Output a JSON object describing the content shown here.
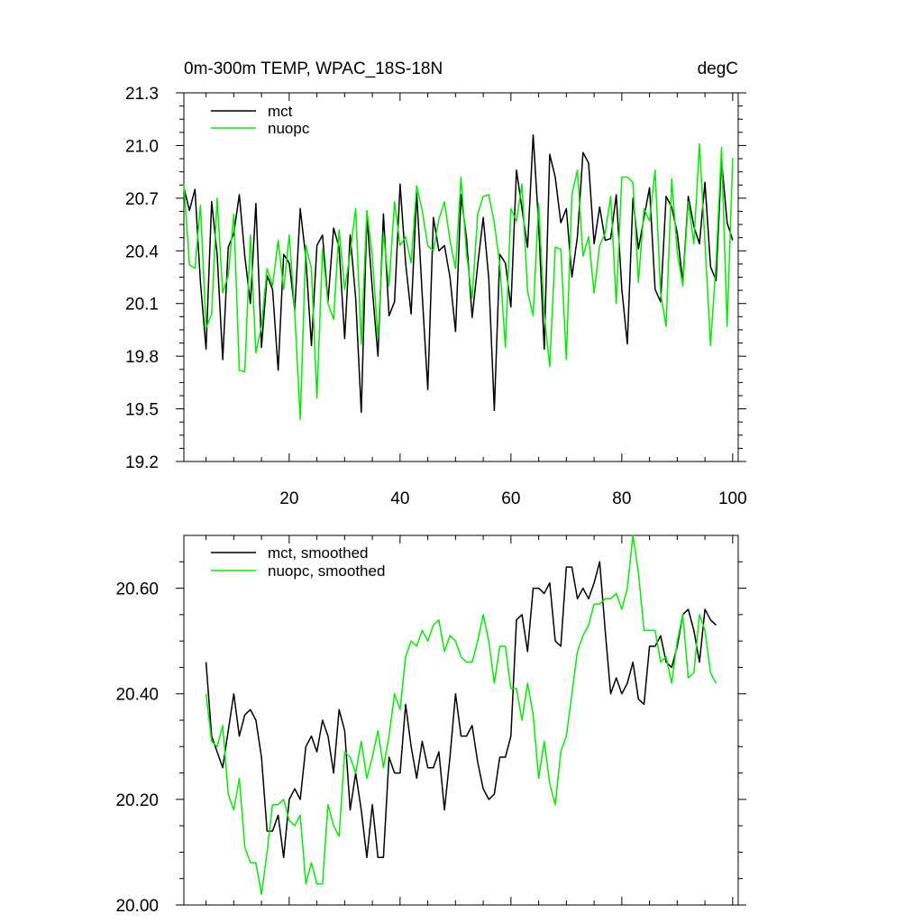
{
  "chart_data": [
    {
      "type": "line",
      "title": "0m-300m TEMP, WPAC_18S-18N",
      "units": "degC",
      "xlim": [
        1,
        101
      ],
      "ylim": [
        19.2,
        21.3
      ],
      "x_ticks": [
        20,
        40,
        60,
        80,
        100
      ],
      "x_tick_labels": [
        "20",
        "40",
        "60",
        "80",
        "100"
      ],
      "y_ticks": [
        19.2,
        19.5,
        19.8,
        20.1,
        20.4,
        20.7,
        21.0,
        21.3
      ],
      "y_tick_labels": [
        "19.2",
        "19.5",
        "19.8",
        "20.1",
        "20.4",
        "20.7",
        "21.0",
        "21.3"
      ],
      "legend_position": "top-left",
      "series": [
        {
          "name": "mct",
          "color": "#000000",
          "x_start": 1,
          "values": [
            20.76,
            20.63,
            20.75,
            20.22,
            19.84,
            20.68,
            20.38,
            19.78,
            20.42,
            20.5,
            20.72,
            20.37,
            20.1,
            20.67,
            19.85,
            20.26,
            20.18,
            19.72,
            20.38,
            20.33,
            20.06,
            20.64,
            20.36,
            19.86,
            20.43,
            20.49,
            20.11,
            20.53,
            20.42,
            19.9,
            20.49,
            20.13,
            19.48,
            20.6,
            20.18,
            19.8,
            20.61,
            20.03,
            20.11,
            20.78,
            20.33,
            20.04,
            20.73,
            20.15,
            19.61,
            20.59,
            20.4,
            20.43,
            20.25,
            19.94,
            20.72,
            20.47,
            20.02,
            20.32,
            20.59,
            20.24,
            19.49,
            20.38,
            20.33,
            20.08,
            20.86,
            20.64,
            20.42,
            21.06,
            20.55,
            19.84,
            20.95,
            20.82,
            20.56,
            20.64,
            20.25,
            20.48,
            20.96,
            20.9,
            20.44,
            20.65,
            20.46,
            20.47,
            20.72,
            20.18,
            19.87,
            20.7,
            20.41,
            20.59,
            20.76,
            20.18,
            20.11,
            20.71,
            20.65,
            20.5,
            20.22,
            20.71,
            20.54,
            20.44,
            20.79,
            20.31,
            20.23,
            20.92,
            20.56,
            20.46
          ]
        },
        {
          "name": "nuopc",
          "color": "#00ee00",
          "x_start": 1,
          "values": [
            20.78,
            20.32,
            20.3,
            20.66,
            19.96,
            20.04,
            20.7,
            20.16,
            20.26,
            20.61,
            19.72,
            19.71,
            20.49,
            19.82,
            19.97,
            20.3,
            20.2,
            20.46,
            20.18,
            20.49,
            20.05,
            19.44,
            20.43,
            20.3,
            19.56,
            20.41,
            20.1,
            20.01,
            20.52,
            20.18,
            20.39,
            20.64,
            19.87,
            20.63,
            20.37,
            19.9,
            20.5,
            20.2,
            20.68,
            20.43,
            20.48,
            20.33,
            20.77,
            20.63,
            20.43,
            20.4,
            20.58,
            20.68,
            20.46,
            20.3,
            20.82,
            20.38,
            20.13,
            20.61,
            20.71,
            20.72,
            20.56,
            20.32,
            19.85,
            20.64,
            20.57,
            20.78,
            20.17,
            20.03,
            20.67,
            20.04,
            19.74,
            20.42,
            20.41,
            19.78,
            20.72,
            20.86,
            20.37,
            20.48,
            20.16,
            20.43,
            20.5,
            20.71,
            20.1,
            20.82,
            20.82,
            20.79,
            20.22,
            20.64,
            20.57,
            20.86,
            20.16,
            19.97,
            20.81,
            20.39,
            20.2,
            20.68,
            20.44,
            21.01,
            20.45,
            19.86,
            20.33,
            20.99,
            19.97,
            20.93
          ]
        }
      ]
    },
    {
      "type": "line",
      "title": "",
      "xlim": [
        1,
        101
      ],
      "ylim": [
        20.0,
        20.7
      ],
      "x_ticks": [
        20,
        40,
        60,
        80,
        100
      ],
      "x_tick_labels": [],
      "y_ticks": [
        20.0,
        20.2,
        20.4,
        20.6
      ],
      "y_tick_labels": [
        "20.00",
        "20.20",
        "20.40",
        "20.60"
      ],
      "legend_position": "top-left",
      "series": [
        {
          "name": "mct, smoothed",
          "color": "#000000",
          "x_start": 5,
          "values": [
            20.46,
            20.32,
            20.29,
            20.26,
            20.33,
            20.4,
            20.32,
            20.36,
            20.37,
            20.35,
            20.28,
            20.14,
            20.14,
            20.17,
            20.09,
            20.2,
            20.22,
            20.2,
            20.3,
            20.32,
            20.29,
            20.35,
            20.32,
            20.25,
            20.37,
            20.33,
            20.18,
            20.25,
            20.18,
            20.09,
            20.19,
            20.09,
            20.09,
            20.28,
            20.25,
            20.25,
            20.38,
            20.3,
            20.24,
            20.31,
            20.26,
            20.26,
            20.29,
            20.18,
            20.28,
            20.4,
            20.32,
            20.32,
            20.34,
            20.27,
            20.22,
            20.2,
            20.21,
            20.28,
            20.28,
            20.32,
            20.54,
            20.55,
            20.48,
            20.6,
            20.6,
            20.59,
            20.61,
            20.5,
            20.49,
            20.64,
            20.64,
            20.58,
            20.6,
            20.58,
            20.61,
            20.65,
            20.52,
            20.4,
            20.43,
            20.4,
            20.42,
            20.46,
            20.39,
            20.38,
            20.49,
            20.49,
            20.51,
            20.46,
            20.45,
            20.49,
            20.55,
            20.56,
            20.52,
            20.46,
            20.56,
            20.54,
            20.53
          ]
        },
        {
          "name": "nuopc, smoothed",
          "color": "#00ee00",
          "x_start": 5,
          "values": [
            20.4,
            20.31,
            20.3,
            20.34,
            20.21,
            20.18,
            20.24,
            20.11,
            20.08,
            20.08,
            20.02,
            20.1,
            20.19,
            20.19,
            20.2,
            20.16,
            20.15,
            20.17,
            20.04,
            20.08,
            20.04,
            20.04,
            20.19,
            20.15,
            20.13,
            20.29,
            20.28,
            20.25,
            20.31,
            20.24,
            20.28,
            20.33,
            20.26,
            20.32,
            20.4,
            20.37,
            20.47,
            20.5,
            20.49,
            20.52,
            20.5,
            20.53,
            20.54,
            20.48,
            20.51,
            20.5,
            20.47,
            20.46,
            20.46,
            20.5,
            20.55,
            20.5,
            20.42,
            20.49,
            20.49,
            20.41,
            20.41,
            20.35,
            20.42,
            20.36,
            20.24,
            20.31,
            20.23,
            20.19,
            20.29,
            20.32,
            20.4,
            20.48,
            20.51,
            20.53,
            20.57,
            20.57,
            20.58,
            20.58,
            20.59,
            20.56,
            20.6,
            20.7,
            20.63,
            20.52,
            20.52,
            20.52,
            20.46,
            20.47,
            20.42,
            20.5,
            20.55,
            20.43,
            20.44,
            20.55,
            20.52,
            20.44,
            20.42
          ]
        }
      ]
    }
  ]
}
